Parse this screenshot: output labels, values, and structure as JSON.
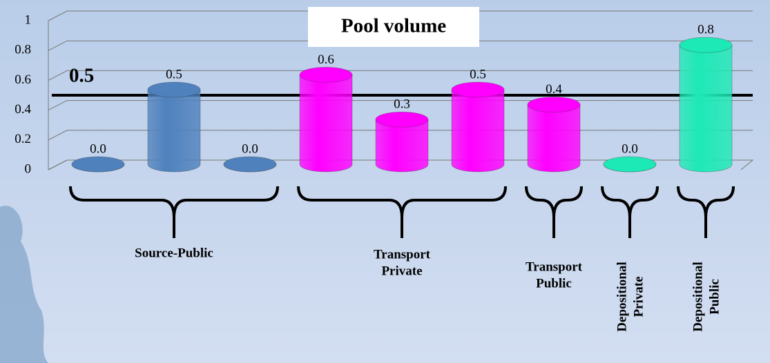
{
  "chart_data": {
    "type": "cylinder",
    "title": "Pool volume",
    "values": [
      0.0,
      0.5,
      0.0,
      0.6,
      0.3,
      0.5,
      0.4,
      0.0,
      0.8
    ],
    "value_labels": [
      "0.0",
      "0.5",
      "0.0",
      "0.6",
      "0.3",
      "0.5",
      "0.4",
      "0.0",
      "0.8"
    ],
    "colors": [
      "#4f81bd",
      "#4f81bd",
      "#4f81bd",
      "#ff00ff",
      "#ff00ff",
      "#ff00ff",
      "#ff00ff",
      "#1de9b6",
      "#1de9b6"
    ],
    "groups": [
      {
        "label": [
          "Source-Public"
        ],
        "bars": 3,
        "rotated": false
      },
      {
        "label": [
          "Transport",
          "Private"
        ],
        "bars": 3,
        "rotated": false
      },
      {
        "label": [
          "Transport",
          "Public"
        ],
        "bars": 1,
        "rotated": false
      },
      {
        "label": [
          "Depositional",
          "Private"
        ],
        "bars": 1,
        "rotated": true
      },
      {
        "label": [
          "Depositional",
          "Public"
        ],
        "bars": 1,
        "rotated": true
      }
    ],
    "reference_line": 0.5,
    "ylim": [
      0,
      1
    ],
    "yticks": [
      0,
      0.2,
      0.4,
      0.6,
      0.8,
      1
    ],
    "grid": true
  }
}
